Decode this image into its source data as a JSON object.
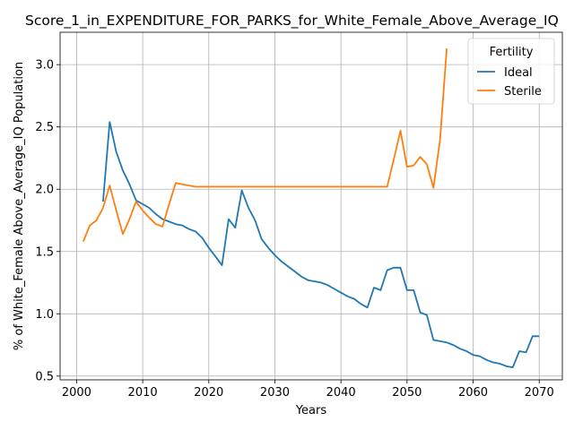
{
  "chart_data": {
    "type": "line",
    "title": "Score_1_in_EXPENDITURE_FOR_PARKS_for_White_Female_Above_Average_IQ",
    "xlabel": "Years",
    "ylabel": "% of White_Female Above_Average_IQ Population",
    "xlim": [
      1997.5,
      2073.5
    ],
    "ylim": [
      0.47,
      3.26
    ],
    "xticks": [
      2000,
      2010,
      2020,
      2030,
      2040,
      2050,
      2060,
      2070
    ],
    "yticks": [
      0.5,
      1.0,
      1.5,
      2.0,
      2.5,
      3.0
    ],
    "xtick_labels": [
      "2000",
      "2010",
      "2020",
      "2030",
      "2040",
      "2050",
      "2060",
      "2070"
    ],
    "ytick_labels": [
      "0.5",
      "1.0",
      "1.5",
      "2.0",
      "2.5",
      "3.0"
    ],
    "grid": true,
    "legend": {
      "title": "Fertility",
      "placement": "top-right"
    },
    "series": [
      {
        "name": "Ideal",
        "color": "#1f77b4",
        "x": [
          2004,
          2005,
          2006,
          2007,
          2008,
          2009,
          2010,
          2011,
          2012,
          2013,
          2014,
          2015,
          2016,
          2017,
          2018,
          2019,
          2020,
          2021,
          2022,
          2023,
          2024,
          2025,
          2026,
          2027,
          2028,
          2029,
          2030,
          2031,
          2032,
          2033,
          2034,
          2035,
          2036,
          2037,
          2038,
          2039,
          2040,
          2041,
          2042,
          2043,
          2044,
          2045,
          2046,
          2047,
          2048,
          2049,
          2050,
          2051,
          2052,
          2053,
          2054,
          2055,
          2056,
          2057,
          2058,
          2059,
          2060,
          2061,
          2062,
          2063,
          2064,
          2065,
          2066,
          2067,
          2068,
          2069,
          2070
        ],
        "y": [
          1.9,
          2.54,
          2.3,
          2.15,
          2.04,
          1.91,
          1.88,
          1.85,
          1.8,
          1.76,
          1.74,
          1.72,
          1.71,
          1.68,
          1.66,
          1.61,
          1.53,
          1.46,
          1.39,
          1.76,
          1.69,
          1.99,
          1.85,
          1.75,
          1.6,
          1.53,
          1.47,
          1.42,
          1.38,
          1.34,
          1.3,
          1.27,
          1.26,
          1.25,
          1.23,
          1.2,
          1.17,
          1.14,
          1.12,
          1.08,
          1.05,
          1.21,
          1.19,
          1.35,
          1.37,
          1.37,
          1.19,
          1.19,
          1.01,
          0.99,
          0.79,
          0.78,
          0.77,
          0.75,
          0.72,
          0.7,
          0.67,
          0.66,
          0.63,
          0.61,
          0.6,
          0.58,
          0.57,
          0.7,
          0.69,
          0.82,
          0.82
        ]
      },
      {
        "name": "Sterile",
        "color": "#ff7f0e",
        "x": [
          2001,
          2002,
          2003,
          2004,
          2005,
          2006,
          2007,
          2008,
          2009,
          2010,
          2011,
          2012,
          2013,
          2014,
          2015,
          2016,
          2017,
          2018,
          2019,
          2020,
          2021,
          2022,
          2023,
          2024,
          2025,
          2026,
          2027,
          2028,
          2029,
          2030,
          2031,
          2032,
          2033,
          2034,
          2035,
          2036,
          2037,
          2038,
          2039,
          2040,
          2041,
          2042,
          2043,
          2044,
          2045,
          2046,
          2047,
          2048,
          2049,
          2050,
          2051,
          2052,
          2053,
          2054,
          2055,
          2056
        ],
        "y": [
          1.58,
          1.71,
          1.75,
          1.85,
          2.03,
          1.83,
          1.64,
          1.76,
          1.9,
          1.83,
          1.77,
          1.72,
          1.7,
          1.88,
          2.05,
          2.04,
          2.03,
          2.02,
          2.02,
          2.02,
          2.02,
          2.02,
          2.02,
          2.02,
          2.02,
          2.02,
          2.02,
          2.02,
          2.02,
          2.02,
          2.02,
          2.02,
          2.02,
          2.02,
          2.02,
          2.02,
          2.02,
          2.02,
          2.02,
          2.02,
          2.02,
          2.02,
          2.02,
          2.02,
          2.02,
          2.02,
          2.02,
          2.24,
          2.47,
          2.18,
          2.19,
          2.26,
          2.2,
          2.01,
          2.4,
          3.13
        ]
      }
    ]
  }
}
